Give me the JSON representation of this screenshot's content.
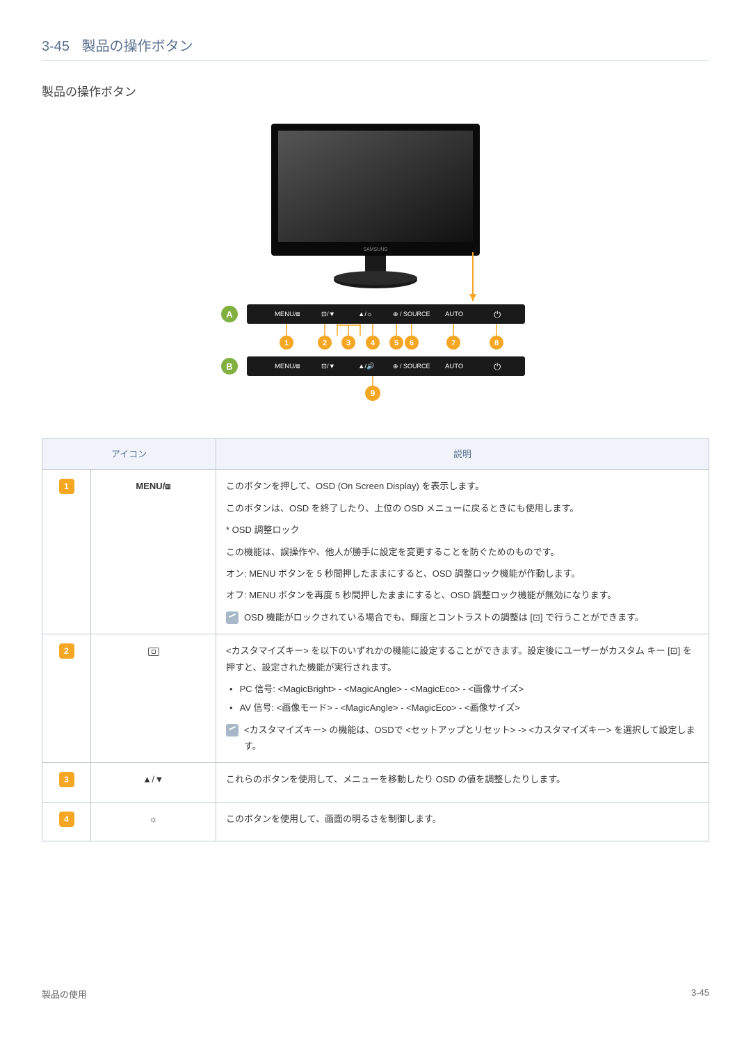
{
  "header": {
    "section_number": "3-45",
    "title": "製品の操作ボタン"
  },
  "sub_heading": "製品の操作ボタン",
  "figure": {
    "monitor_screen_color": "#2a2a2a",
    "bezel_color": "#0a0a0a",
    "brand_text": "SAMSUNG",
    "strip_bg": "#1a1a1a",
    "strip_text_color": "#ffffff",
    "badge_A": "A",
    "badge_B": "B",
    "badge_A_color": "#7fb040",
    "badge_B_color": "#7fb040",
    "num_badge_color": "#f5a623",
    "pointer_color": "#f5a623",
    "labels_A": [
      "MENU/⧈",
      "⊡/▼",
      "▲/☼",
      "⊕ / SOURCE",
      "AUTO",
      "⏻"
    ],
    "labels_B": [
      "MENU/⧈",
      "⊡/▼",
      "▲/🔊",
      "⊕ / SOURCE",
      "AUTO",
      "⏻"
    ],
    "numbers_row1": [
      "1",
      "2",
      "3",
      "4",
      "5",
      "6",
      "7",
      "8"
    ],
    "number_row2": "9"
  },
  "table": {
    "col1_header": "アイコン",
    "col2_header": "説明",
    "rows": [
      {
        "num": "1",
        "icon_text": "MENU/⧈",
        "desc": {
          "p1": "このボタンを押して、OSD (On Screen Display) を表示します。",
          "p2": "このボタンは、OSD を終了したり、上位の OSD メニューに戻るときにも使用します。",
          "p3": "* OSD 調整ロック",
          "p4": "この機能は、誤操作や、他人が勝手に設定を変更することを防ぐためのものです。",
          "p5": "オン: MENU ボタンを 5 秒間押したままにすると、OSD 調整ロック機能が作動します。",
          "p6": "オフ: MENU ボタンを再度 5 秒間押したままにすると、OSD 調整ロック機能が無効になります。",
          "note": "OSD 機能がロックされている場合でも、輝度とコントラストの調整は [⊡] で行うことができます。"
        }
      },
      {
        "num": "2",
        "icon_text": "⊡",
        "desc": {
          "p1": "<カスタマイズキー> を以下のいずれかの機能に設定することができます。設定後にユーザーがカスタム キー [⊡] を押すと、設定された機能が実行されます。",
          "b1": "PC 信号: <MagicBright> - <MagicAngle> - <MagicEco> - <画像サイズ>",
          "b2": "AV 信号: <画像モード> - <MagicAngle> - <MagicEco> - <画像サイズ>",
          "note": "<カスタマイズキー> の機能は、OSDで <セットアップとリセット> -> <カスタマイズキー> を選択して設定します。"
        }
      },
      {
        "num": "3",
        "icon_text": "▲/▼",
        "desc": {
          "p1": "これらのボタンを使用して、メニューを移動したり OSD の値を調整したりします。"
        }
      },
      {
        "num": "4",
        "icon_text": "☼",
        "desc": {
          "p1": "このボタンを使用して、画面の明るさを制御します。"
        }
      }
    ]
  },
  "footer": {
    "left": "製品の使用",
    "right": "3-45"
  }
}
